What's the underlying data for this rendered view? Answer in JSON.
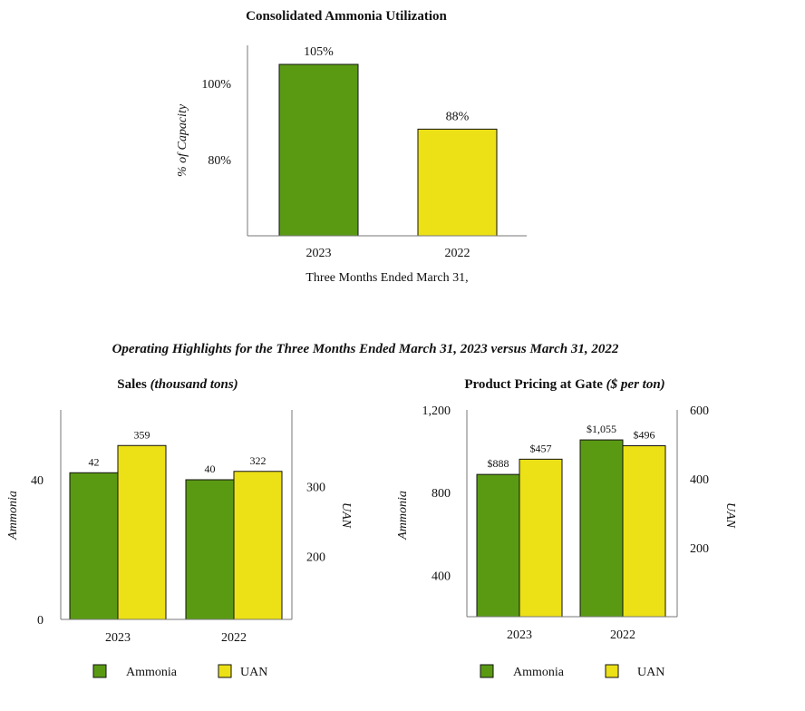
{
  "colors": {
    "ammonia": "#5a9a13",
    "uan": "#ece016",
    "axis": "#777777",
    "bar_edge": "#111111"
  },
  "section_title": "Operating Highlights for the Three Months Ended March 31, 2023 versus March 31, 2022",
  "chart_data": [
    {
      "type": "bar",
      "title": "Consolidated Ammonia Utilization",
      "ylabel": "% of Capacity",
      "xlabel": "Three Months Ended March 31,",
      "categories": [
        "2023",
        "2022"
      ],
      "values": [
        105,
        88
      ],
      "data_labels": [
        "105%",
        "88%"
      ],
      "ylim": [
        60,
        110
      ],
      "yticks": [
        80,
        100
      ],
      "ytick_labels": [
        "80%",
        "100%"
      ],
      "grid": false
    },
    {
      "type": "bar",
      "title": "Sales",
      "title_note": "(thousand tons)",
      "categories": [
        "2023",
        "2022"
      ],
      "ylabel_left": "Ammonia",
      "ylabel_right": "UAN",
      "left_axis": {
        "ylim": [
          0,
          60
        ],
        "yticks": [
          0,
          40
        ],
        "ytick_labels": [
          "0",
          "40"
        ]
      },
      "right_axis": {
        "ylim": [
          110,
          410
        ],
        "yticks": [
          200,
          300
        ],
        "ytick_labels": [
          "200",
          "300"
        ]
      },
      "series": [
        {
          "name": "Ammonia",
          "axis": "left",
          "values": [
            42,
            40
          ],
          "labels": [
            "42",
            "40"
          ]
        },
        {
          "name": "UAN",
          "axis": "right",
          "values": [
            359,
            322
          ],
          "labels": [
            "359",
            "322"
          ]
        }
      ],
      "legend": "bottom",
      "grid": false
    },
    {
      "type": "bar",
      "title": "Product Pricing at Gate",
      "title_note": "($ per ton)",
      "categories": [
        "2023",
        "2022"
      ],
      "ylabel_left": "Ammonia",
      "ylabel_right": "UAN",
      "left_axis": {
        "ylim": [
          200,
          1200
        ],
        "yticks": [
          400,
          800,
          1200
        ],
        "ytick_labels": [
          "400",
          "800",
          "1,200"
        ]
      },
      "right_axis": {
        "ylim": [
          0,
          600
        ],
        "yticks": [
          200,
          400,
          600
        ],
        "ytick_labels": [
          "200",
          "400",
          "600"
        ]
      },
      "series": [
        {
          "name": "Ammonia",
          "axis": "left",
          "values": [
            888,
            1055
          ],
          "labels": [
            "$888",
            "$1,055"
          ]
        },
        {
          "name": "UAN",
          "axis": "right",
          "values": [
            457,
            496
          ],
          "labels": [
            "$457",
            "$496"
          ]
        }
      ],
      "legend": "bottom",
      "grid": false
    }
  ]
}
